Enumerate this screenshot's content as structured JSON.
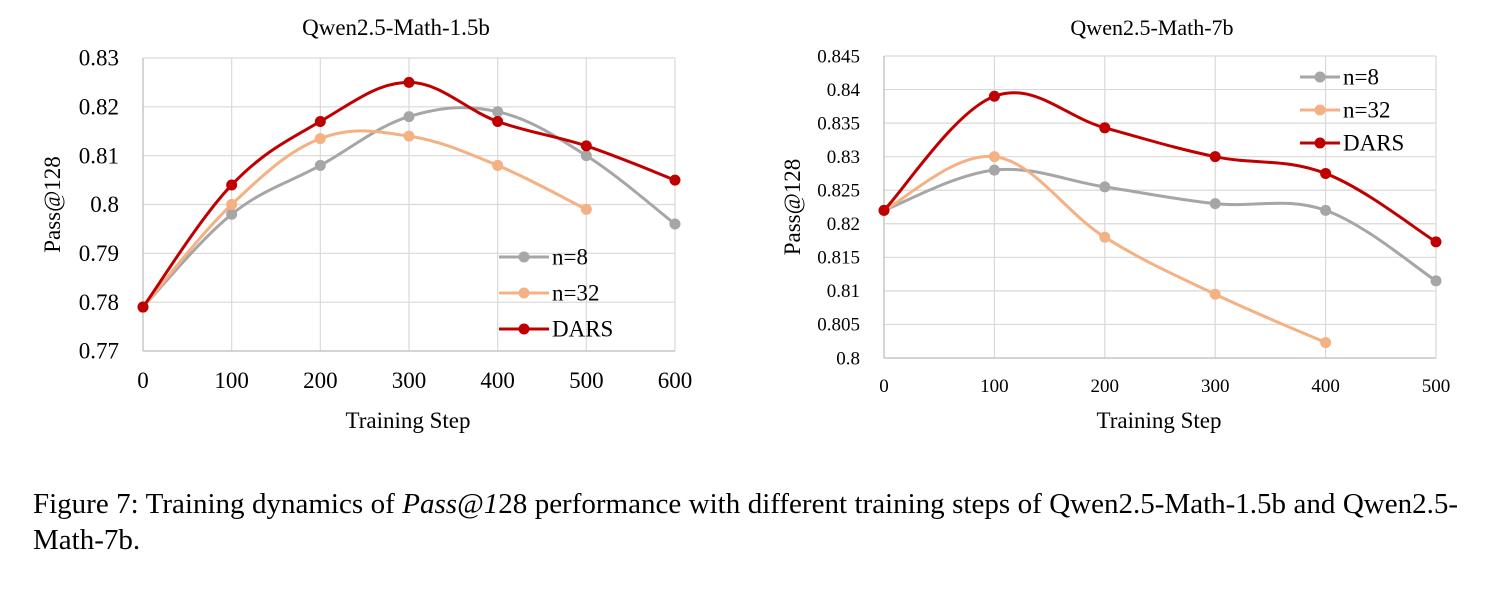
{
  "chart_data": [
    {
      "type": "line",
      "title": "Qwen2.5-Math-1.5b",
      "xlabel": "Training Step",
      "ylabel": "Pass@128",
      "xlim": [
        0,
        600
      ],
      "ylim": [
        0.77,
        0.83
      ],
      "x_ticks": [
        "0",
        "100",
        "200",
        "300",
        "400",
        "500",
        "600"
      ],
      "y_ticks": [
        "0.77",
        "0.78",
        "0.79",
        "0.8",
        "0.81",
        "0.82",
        "0.83"
      ],
      "grid": true,
      "legend_position": "bottom-right",
      "series": [
        {
          "name": "n=8",
          "color": "#a6a6a6",
          "x": [
            0,
            100,
            200,
            300,
            400,
            500,
            600
          ],
          "values": [
            0.779,
            0.798,
            0.808,
            0.818,
            0.819,
            0.81,
            0.796
          ]
        },
        {
          "name": "n=32",
          "color": "#f4b183",
          "x": [
            0,
            100,
            200,
            300,
            400,
            500
          ],
          "values": [
            0.779,
            0.8,
            0.8135,
            0.814,
            0.808,
            0.799
          ]
        },
        {
          "name": "DARS",
          "color": "#c00000",
          "x": [
            0,
            100,
            200,
            300,
            400,
            500,
            600
          ],
          "values": [
            0.779,
            0.804,
            0.817,
            0.825,
            0.817,
            0.812,
            0.805
          ]
        }
      ]
    },
    {
      "type": "line",
      "title": "Qwen2.5-Math-7b",
      "xlabel": "Training Step",
      "ylabel": "Pass@128",
      "xlim": [
        0,
        500
      ],
      "ylim": [
        0.8,
        0.845
      ],
      "x_ticks": [
        "0",
        "100",
        "200",
        "300",
        "400",
        "500"
      ],
      "y_ticks": [
        "0.8",
        "0.805",
        "0.81",
        "0.815",
        "0.82",
        "0.825",
        "0.83",
        "0.835",
        "0.84",
        "0.845"
      ],
      "grid": true,
      "legend_position": "top-right",
      "series": [
        {
          "name": "n=8",
          "color": "#a6a6a6",
          "x": [
            0,
            100,
            200,
            300,
            400,
            500
          ],
          "values": [
            0.822,
            0.828,
            0.8255,
            0.823,
            0.822,
            0.8115
          ]
        },
        {
          "name": "n=32",
          "color": "#f4b183",
          "x": [
            0,
            100,
            200,
            300,
            400
          ],
          "values": [
            0.822,
            0.83,
            0.818,
            0.8095,
            0.8023
          ]
        },
        {
          "name": "DARS",
          "color": "#c00000",
          "x": [
            0,
            100,
            200,
            300,
            400,
            500
          ],
          "values": [
            0.822,
            0.839,
            0.8343,
            0.83,
            0.8275,
            0.8173
          ]
        }
      ]
    }
  ],
  "caption": {
    "part1": "Figure 7: Training dynamics of ",
    "italic": "Pass@1",
    "part2": "28 performance with different training steps of Qwen2.5-Math-1.5b and Qwen2.5-Math-7b."
  }
}
